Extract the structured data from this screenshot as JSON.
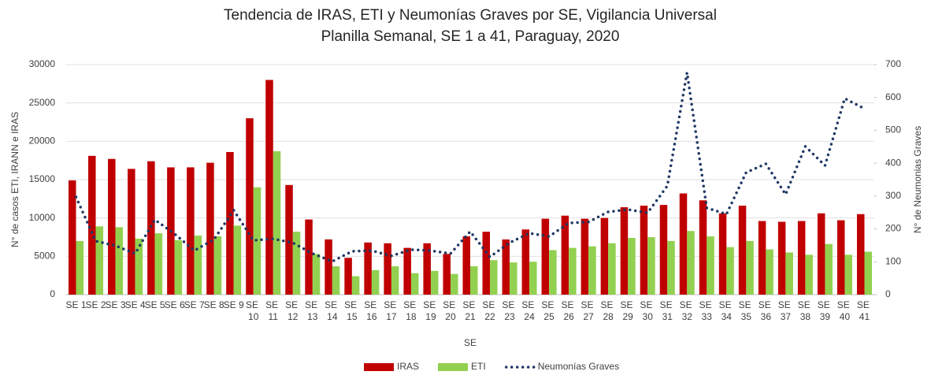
{
  "chart_data": {
    "type": "bar_line",
    "title": "Tendencia de IRAS, ETI y Neumonías Graves por SE, Vigilancia Universal",
    "subtitle": "Planilla Semanal, SE 1 a 41, Paraguay, 2020",
    "x_label": "SE",
    "y_label": "N° de casos ETI, IRANN e IRAS",
    "y2_label": "N° de Neumonias Graves",
    "categories": [
      "SE 1",
      "SE 2",
      "SE 3",
      "SE 4",
      "SE 5",
      "SE 6",
      "SE 7",
      "SE 8",
      "SE 9",
      "SE 10",
      "SE 11",
      "SE 12",
      "SE 13",
      "SE 14",
      "SE 15",
      "SE 16",
      "SE 17",
      "SE 18",
      "SE 19",
      "SE 20",
      "SE 21",
      "SE 22",
      "SE 23",
      "SE 24",
      "SE 25",
      "SE 26",
      "SE 27",
      "SE 28",
      "SE 29",
      "SE 30",
      "SE 31",
      "SE 32",
      "SE 33",
      "SE 34",
      "SE 35",
      "SE 36",
      "SE 37",
      "SE 38",
      "SE 39",
      "SE 40",
      "SE 41"
    ],
    "series": [
      {
        "name": "IRAS",
        "type": "bar",
        "color": "#c00000",
        "values": [
          14900,
          18100,
          17700,
          16400,
          17400,
          16600,
          16600,
          17200,
          18600,
          23000,
          28000,
          14300,
          9800,
          7200,
          4800,
          6800,
          6700,
          6100,
          6700,
          5300,
          7600,
          8200,
          7200,
          8500,
          9900,
          10300,
          9900,
          10000,
          11400,
          11600,
          11700,
          13200,
          12300,
          10600,
          11600,
          9600,
          9500,
          9600,
          10600,
          9700,
          10500
        ]
      },
      {
        "name": "ETI",
        "type": "bar",
        "color": "#92d050",
        "values": [
          7000,
          8900,
          8800,
          7300,
          8000,
          7100,
          7700,
          7600,
          9000,
          14000,
          18700,
          8200,
          5300,
          3700,
          2400,
          3200,
          3700,
          2800,
          3100,
          2700,
          3700,
          4500,
          4200,
          4300,
          5800,
          6100,
          6300,
          6700,
          7400,
          7500,
          7000,
          8300,
          7600,
          6200,
          7000,
          5900,
          5500,
          5200,
          6600,
          5200,
          5600
        ]
      },
      {
        "name": "Neumonías Graves",
        "type": "line",
        "axis": "y2",
        "color": "#1f3864",
        "values": [
          297,
          163,
          149,
          125,
          228,
          185,
          134,
          168,
          257,
          165,
          170,
          158,
          125,
          101,
          132,
          134,
          118,
          137,
          134,
          125,
          192,
          115,
          158,
          187,
          177,
          218,
          221,
          252,
          259,
          249,
          331,
          676,
          264,
          245,
          372,
          398,
          305,
          451,
          393,
          597,
          566
        ]
      }
    ],
    "ylim": [
      0,
      30000
    ],
    "yticks": [
      0,
      5000,
      10000,
      15000,
      20000,
      25000,
      30000
    ],
    "y2lim": [
      0,
      700
    ],
    "y2ticks": [
      0,
      100,
      200,
      300,
      400,
      500,
      600,
      700
    ],
    "legend": "bottom"
  }
}
